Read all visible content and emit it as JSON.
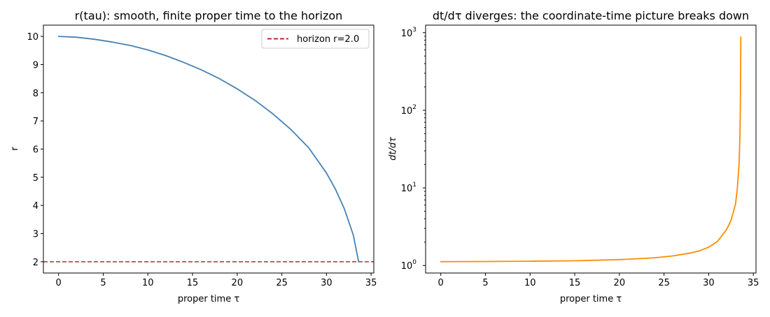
{
  "chart_data": [
    {
      "type": "line",
      "title": "r(tau): smooth, finite proper time to the horizon",
      "xlabel": "proper time τ",
      "ylabel": "r",
      "xlim": [
        -1.7,
        35.3
      ],
      "ylim": [
        1.6,
        10.4
      ],
      "yscale": "linear",
      "grid": false,
      "legend_position": "top-right",
      "x_ticks": [
        0,
        5,
        10,
        15,
        20,
        25,
        30,
        35
      ],
      "y_ticks": [
        2,
        3,
        4,
        5,
        6,
        7,
        8,
        9,
        10
      ],
      "series": [
        {
          "color": "#4682b4",
          "x": [
            0,
            2,
            4,
            6,
            8,
            10,
            12,
            14,
            16,
            18,
            20,
            22,
            24,
            26,
            28,
            30,
            31,
            32,
            33,
            33.6
          ],
          "y": [
            10.0,
            9.97,
            9.9,
            9.8,
            9.68,
            9.52,
            9.32,
            9.08,
            8.81,
            8.5,
            8.14,
            7.73,
            7.25,
            6.7,
            6.05,
            5.15,
            4.58,
            3.88,
            2.95,
            2.0
          ]
        }
      ],
      "reference_lines": [
        {
          "name": "horizon r=2.0",
          "y": 2.0,
          "style": "dashed",
          "color": "#c0282d"
        }
      ]
    },
    {
      "type": "line",
      "title": "dt/dτ diverges: the coordinate-time picture breaks down",
      "xlabel": "proper time τ",
      "ylabel": "dt/dτ",
      "xlim": [
        -1.7,
        35.3
      ],
      "ylim": [
        0.8,
        1250
      ],
      "yscale": "log",
      "grid": false,
      "x_ticks": [
        0,
        5,
        10,
        15,
        20,
        25,
        30,
        35
      ],
      "y_ticks": [
        {
          "value": 1,
          "base": "10",
          "exp": "0"
        },
        {
          "value": 10,
          "base": "10",
          "exp": "1"
        },
        {
          "value": 100,
          "base": "10",
          "exp": "2"
        },
        {
          "value": 1000,
          "base": "10",
          "exp": "3"
        }
      ],
      "series": [
        {
          "color": "#ff8c00",
          "x": [
            0,
            5,
            10,
            15,
            20,
            22,
            24,
            26,
            28,
            29,
            30,
            31,
            32,
            32.5,
            33,
            33.2,
            33.4,
            33.5,
            33.55,
            33.6
          ],
          "y": [
            1.12,
            1.125,
            1.135,
            1.15,
            1.19,
            1.22,
            1.26,
            1.33,
            1.45,
            1.55,
            1.72,
            2.05,
            2.9,
            3.8,
            6.2,
            9.5,
            20,
            45,
            120,
            880
          ]
        }
      ]
    }
  ]
}
